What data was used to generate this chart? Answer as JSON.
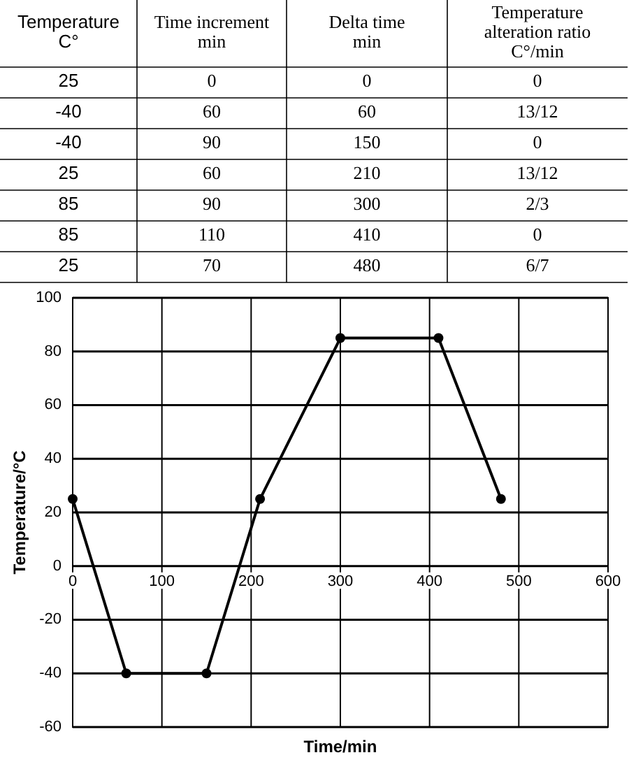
{
  "chart_data": [
    {
      "type": "other",
      "annotations": [
        "Temperature\nC°",
        "Time increment\nmin",
        "Delta time\nmin",
        "Temperature\nalteration ratio\nC°/min",
        "25",
        "0",
        "0",
        "0",
        "-40",
        "60",
        "60",
        "13/12",
        "-40",
        "90",
        "150",
        "0",
        "25",
        "60",
        "210",
        "13/12",
        "85",
        "90",
        "300",
        "2/3",
        "85",
        "110",
        "410",
        "0",
        "25",
        "70",
        "480",
        "6/7"
      ]
    },
    {
      "type": "line",
      "xlabel": "Time/min",
      "ylabel": "Temperature/°C",
      "x": [
        0,
        60,
        150,
        210,
        300,
        410,
        480
      ],
      "values": [
        25,
        -40,
        -40,
        25,
        85,
        85,
        25
      ],
      "color": "#000000",
      "xlim": [
        0,
        600
      ],
      "ylim": [
        -60,
        100
      ],
      "xticks": [
        0,
        100,
        200,
        300,
        400,
        500,
        600
      ],
      "yticks": [
        -60,
        -40,
        -20,
        0,
        20,
        40,
        60,
        80,
        100
      ],
      "grid": true,
      "marker": "circle",
      "line_style": "solid"
    }
  ]
}
